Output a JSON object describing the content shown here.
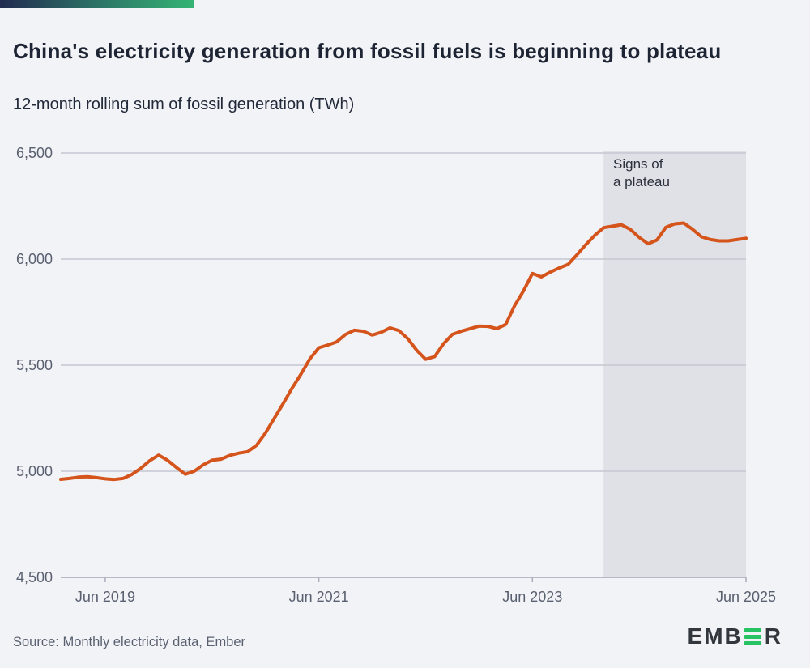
{
  "page": {
    "background": "#f2f3f7",
    "accent_bar_gradient_start": "#222b50",
    "accent_bar_gradient_end": "#35b474"
  },
  "header": {
    "title": "China's electricity generation from fossil fuels is beginning to plateau",
    "subtitle": "12-month rolling sum of fossil generation (TWh)"
  },
  "chart_data": {
    "type": "line",
    "title": "China's electricity generation from fossil fuels is beginning to plateau",
    "subtitle": "12-month rolling sum of fossil generation (TWh)",
    "unit": "TWh",
    "x_start_month": "2019-01",
    "x_end_month": "2025-06",
    "interval": "monthly",
    "series": [
      {
        "name": "Fossil generation, 12-month rolling sum",
        "color": "#d4541b",
        "values": [
          4962,
          4966,
          4972,
          4974,
          4970,
          4964,
          4961,
          4966,
          4985,
          5014,
          5050,
          5076,
          5052,
          5018,
          4986,
          5000,
          5030,
          5052,
          5057,
          5075,
          5085,
          5092,
          5122,
          5180,
          5250,
          5320,
          5392,
          5458,
          5530,
          5582,
          5595,
          5610,
          5645,
          5665,
          5660,
          5642,
          5655,
          5676,
          5663,
          5625,
          5570,
          5528,
          5540,
          5600,
          5645,
          5660,
          5672,
          5684,
          5683,
          5672,
          5692,
          5780,
          5850,
          5932,
          5916,
          5938,
          5958,
          5975,
          6020,
          6068,
          6112,
          6148,
          6155,
          6162,
          6140,
          6102,
          6072,
          6090,
          6150,
          6166,
          6170,
          6140,
          6105,
          6092,
          6086,
          6086,
          6092,
          6098
        ]
      }
    ],
    "ylim": [
      4500,
      6500
    ],
    "y_ticks": [
      {
        "label": "6,500",
        "value": 6500
      },
      {
        "label": "6,000",
        "value": 6000
      },
      {
        "label": "5,500",
        "value": 5500
      },
      {
        "label": "5,000",
        "value": 5000
      },
      {
        "label": "4,500",
        "value": 4500
      }
    ],
    "x_ticks": [
      {
        "label": "Jun 2019",
        "month_index": 5
      },
      {
        "label": "Jun 2021",
        "month_index": 29
      },
      {
        "label": "Jun 2023",
        "month_index": 53
      },
      {
        "label": "Jun 2025",
        "month_index": 77
      }
    ],
    "grid": "horizontal",
    "legend": "none",
    "annotation": {
      "line1": "Signs of",
      "line2": "a plateau",
      "region_start_month_index": 61,
      "region_color": "#e0e1e6"
    },
    "colors": {
      "gridline": "#c5c8d2",
      "axis_line": "#a3a8b5",
      "tick": "#a9adbb",
      "tick_label": "#596070",
      "annotation_text": "#2b303c"
    }
  },
  "footer": {
    "source": "Source: Monthly electricity data, Ember",
    "logo": {
      "name": "EMBER",
      "prefix": "EMB",
      "suffix": "R",
      "bar_color": "#27c363",
      "text_color": "#32373d"
    }
  }
}
